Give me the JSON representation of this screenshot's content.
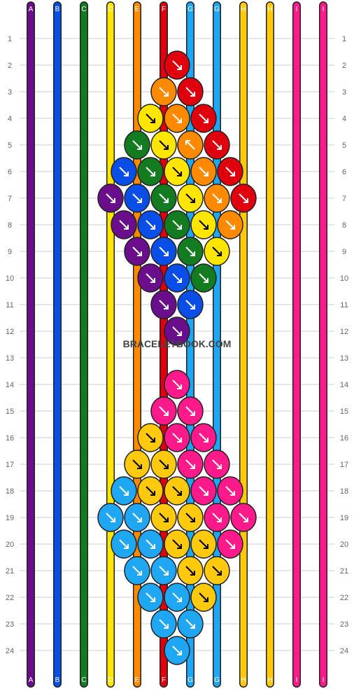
{
  "watermark": "BRACELETBOOK.COM",
  "string_labels": [
    "A",
    "B",
    "C",
    "D",
    "E",
    "F",
    "G",
    "G",
    "H",
    "H",
    "I",
    "I"
  ],
  "row_numbers": [
    "1",
    "2",
    "3",
    "4",
    "5",
    "6",
    "7",
    "8",
    "9",
    "10",
    "11",
    "12",
    "13",
    "14",
    "15",
    "16",
    "17",
    "18",
    "19",
    "20",
    "21",
    "22",
    "23",
    "24"
  ],
  "colors": {
    "purple": "#6a0e8c",
    "blue": "#0a4ee8",
    "green": "#137c21",
    "yellow": "#ffe600",
    "orange": "#ff8a00",
    "red": "#e0000d",
    "lightblue": "#20a7f4",
    "gold": "#ffc90e",
    "pink": "#ff1a8c",
    "grid": "#bbbbbb"
  },
  "string_colors_top": [
    "purple",
    "blue",
    "green",
    "yellow",
    "orange",
    "red",
    "lightblue",
    "lightblue",
    "gold",
    "gold",
    "pink",
    "pink"
  ],
  "knot_rows": [
    {
      "row": 2,
      "knots": [
        [
          "red",
          "F"
        ]
      ]
    },
    {
      "row": 3,
      "knots": [
        [
          "orange",
          "F"
        ],
        [
          "red",
          "F"
        ]
      ]
    },
    {
      "row": 4,
      "knots": [
        [
          "yellow",
          "F"
        ],
        [
          "orange",
          "F"
        ],
        [
          "red",
          "F"
        ]
      ]
    },
    {
      "row": 5,
      "knots": [
        [
          "green",
          "F"
        ],
        [
          "yellow",
          "F"
        ],
        [
          "orange",
          "B"
        ],
        [
          "red",
          "F"
        ]
      ]
    },
    {
      "row": 6,
      "knots": [
        [
          "blue",
          "F"
        ],
        [
          "green",
          "F"
        ],
        [
          "yellow",
          "F"
        ],
        [
          "orange",
          "F"
        ],
        [
          "red",
          "F"
        ]
      ]
    },
    {
      "row": 7,
      "knots": [
        [
          "purple",
          "F"
        ],
        [
          "blue",
          "F"
        ],
        [
          "green",
          "F"
        ],
        [
          "yellow",
          "F"
        ],
        [
          "orange",
          "F"
        ],
        [
          "red",
          "F"
        ]
      ]
    },
    {
      "row": 8,
      "knots": [
        [
          "purple",
          "F"
        ],
        [
          "blue",
          "F"
        ],
        [
          "green",
          "F"
        ],
        [
          "yellow",
          "F"
        ],
        [
          "orange",
          "F"
        ]
      ]
    },
    {
      "row": 9,
      "knots": [
        [
          "purple",
          "F"
        ],
        [
          "blue",
          "F"
        ],
        [
          "green",
          "F"
        ],
        [
          "yellow",
          "F"
        ]
      ]
    },
    {
      "row": 10,
      "knots": [
        [
          "purple",
          "F"
        ],
        [
          "blue",
          "F"
        ],
        [
          "green",
          "F"
        ]
      ]
    },
    {
      "row": 11,
      "knots": [
        [
          "purple",
          "F"
        ],
        [
          "blue",
          "F"
        ]
      ]
    },
    {
      "row": 12,
      "knots": [
        [
          "purple",
          "F"
        ]
      ]
    },
    {
      "row": 14,
      "knots": [
        [
          "pink",
          "F"
        ]
      ]
    },
    {
      "row": 15,
      "knots": [
        [
          "pink",
          "F"
        ],
        [
          "pink",
          "F"
        ]
      ]
    },
    {
      "row": 16,
      "knots": [
        [
          "gold",
          "F"
        ],
        [
          "pink",
          "F"
        ],
        [
          "pink",
          "F"
        ]
      ]
    },
    {
      "row": 17,
      "knots": [
        [
          "gold",
          "F"
        ],
        [
          "gold",
          "F"
        ],
        [
          "pink",
          "F"
        ],
        [
          "pink",
          "F"
        ]
      ]
    },
    {
      "row": 18,
      "knots": [
        [
          "lightblue",
          "F"
        ],
        [
          "gold",
          "F"
        ],
        [
          "gold",
          "F"
        ],
        [
          "pink",
          "F"
        ],
        [
          "pink",
          "F"
        ]
      ]
    },
    {
      "row": 19,
      "knots": [
        [
          "lightblue",
          "F"
        ],
        [
          "lightblue",
          "F"
        ],
        [
          "gold",
          "F"
        ],
        [
          "gold",
          "F"
        ],
        [
          "pink",
          "F"
        ],
        [
          "pink",
          "F"
        ]
      ]
    },
    {
      "row": 20,
      "knots": [
        [
          "lightblue",
          "F"
        ],
        [
          "lightblue",
          "F"
        ],
        [
          "gold",
          "F"
        ],
        [
          "gold",
          "F"
        ],
        [
          "pink",
          "F"
        ]
      ]
    },
    {
      "row": 21,
      "knots": [
        [
          "lightblue",
          "F"
        ],
        [
          "lightblue",
          "F"
        ],
        [
          "gold",
          "F"
        ],
        [
          "gold",
          "F"
        ]
      ]
    },
    {
      "row": 22,
      "knots": [
        [
          "lightblue",
          "F"
        ],
        [
          "lightblue",
          "F"
        ],
        [
          "gold",
          "F"
        ]
      ]
    },
    {
      "row": 23,
      "knots": [
        [
          "lightblue",
          "F"
        ],
        [
          "lightblue",
          "F"
        ]
      ]
    },
    {
      "row": 24,
      "knots": [
        [
          "lightblue",
          "F"
        ]
      ]
    }
  ]
}
